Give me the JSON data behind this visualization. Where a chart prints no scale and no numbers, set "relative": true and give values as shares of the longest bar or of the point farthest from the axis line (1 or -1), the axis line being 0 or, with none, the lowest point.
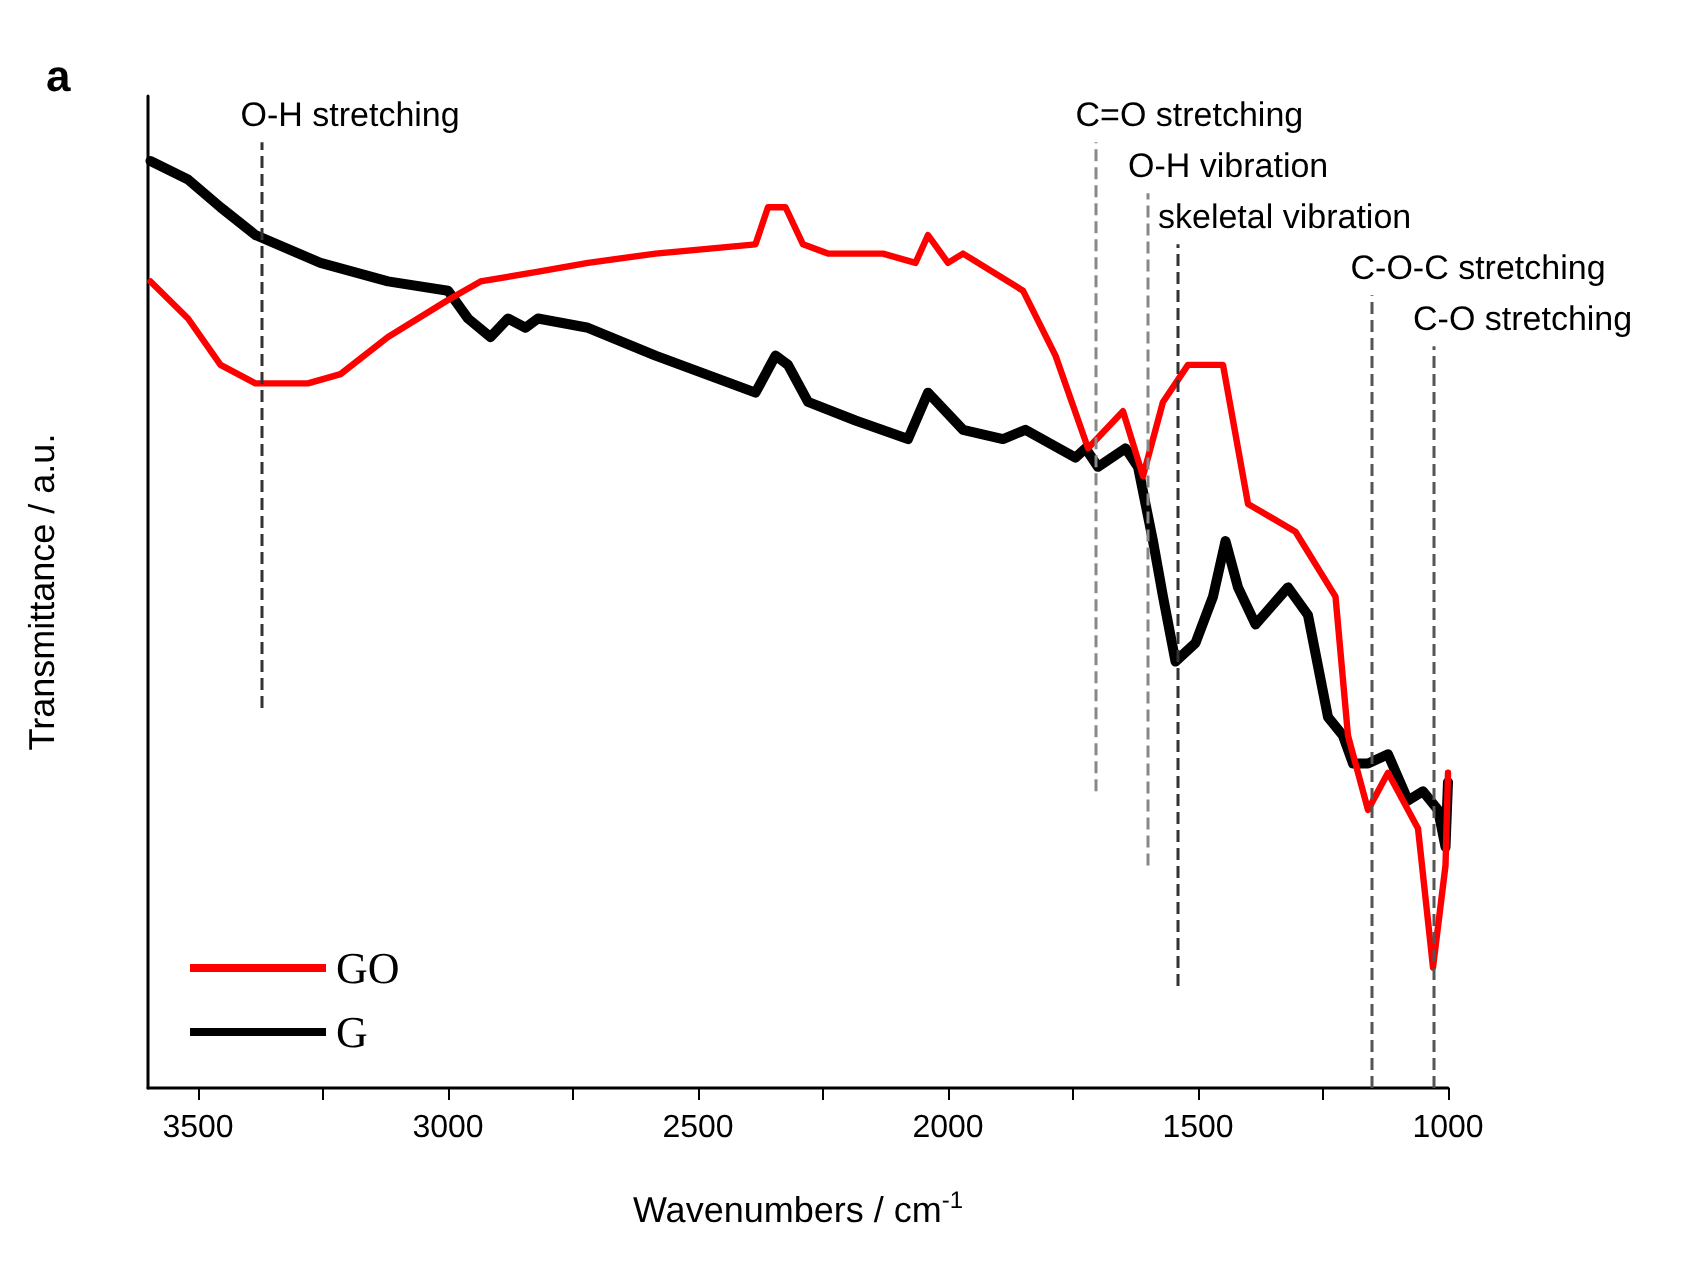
{
  "chart_data": {
    "type": "line",
    "title": "a",
    "xlabel": "Wavenumbers / cm$^{-1}$",
    "ylabel": "Transmittance / a.u.",
    "relative": true,
    "xlim": [
      3600,
      1000
    ],
    "xticks": [
      3500,
      {
        "value": 3250,
        "label": null
      },
      3000,
      {
        "value": 2750,
        "label": null
      },
      2500,
      {
        "value": 2250,
        "label": null
      },
      2000,
      {
        "value": 1750,
        "label": null
      },
      1500,
      {
        "value": 1250,
        "label": null
      },
      1000
    ],
    "grid": false,
    "legend": "bottom left",
    "marker": "none",
    "line_style": "solid",
    "series": [
      {
        "name": "GO",
        "color": "#ff0000",
        "x": [
          3595,
          3520,
          3455,
          3385,
          3280,
          3215,
          3120,
          3000,
          2935,
          2825,
          2720,
          2585,
          2385,
          2360,
          2325,
          2290,
          2240,
          2130,
          2065,
          2040,
          2000,
          1970,
          1850,
          1785,
          1720,
          1650,
          1610,
          1570,
          1520,
          1450,
          1400,
          1305,
          1225,
          1200,
          1160,
          1120,
          1060,
          1030,
          1005,
          1000
        ],
        "values": [
          0.87,
          0.83,
          0.78,
          0.76,
          0.76,
          0.77,
          0.81,
          0.85,
          0.87,
          0.88,
          0.89,
          0.9,
          0.91,
          0.95,
          0.95,
          0.91,
          0.9,
          0.9,
          0.89,
          0.92,
          0.89,
          0.9,
          0.86,
          0.79,
          0.69,
          0.73,
          0.66,
          0.74,
          0.78,
          0.78,
          0.63,
          0.6,
          0.53,
          0.38,
          0.3,
          0.34,
          0.28,
          0.13,
          0.24,
          0.34
        ]
      },
      {
        "name": "G",
        "color": "#000000",
        "x": [
          3595,
          3520,
          3455,
          3385,
          3255,
          3120,
          3000,
          2960,
          2915,
          2880,
          2845,
          2820,
          2720,
          2585,
          2385,
          2345,
          2320,
          2280,
          2185,
          2080,
          2040,
          1970,
          1890,
          1845,
          1745,
          1725,
          1700,
          1645,
          1620,
          1590,
          1570,
          1545,
          1505,
          1470,
          1445,
          1420,
          1385,
          1320,
          1280,
          1240,
          1210,
          1190,
          1160,
          1120,
          1080,
          1050,
          1020,
          1005,
          1000
        ],
        "values": [
          1.0,
          0.98,
          0.95,
          0.92,
          0.89,
          0.87,
          0.86,
          0.83,
          0.81,
          0.83,
          0.82,
          0.83,
          0.82,
          0.79,
          0.75,
          0.79,
          0.78,
          0.74,
          0.72,
          0.7,
          0.75,
          0.71,
          0.7,
          0.71,
          0.68,
          0.69,
          0.67,
          0.69,
          0.67,
          0.59,
          0.53,
          0.46,
          0.48,
          0.53,
          0.59,
          0.54,
          0.5,
          0.54,
          0.51,
          0.4,
          0.38,
          0.35,
          0.35,
          0.36,
          0.31,
          0.32,
          0.3,
          0.26,
          0.33
        ]
      }
    ],
    "ref_lines": [
      {
        "axis": "x",
        "value": 3375,
        "label": "O-H stretching",
        "line_style": "dashed",
        "color": "#333333"
      },
      {
        "axis": "x",
        "value": 1705,
        "label": "C=O stretching",
        "line_style": "dashed",
        "color": "#888888"
      },
      {
        "axis": "x",
        "value": 1600,
        "label": "O-H vibration",
        "line_style": "dashed",
        "color": "#888888"
      },
      {
        "axis": "x",
        "value": 1540,
        "label": "skeletal vibration",
        "line_style": "dashed",
        "color": "#333333"
      },
      {
        "axis": "x",
        "value": 1155,
        "label": "C-O-C stretching",
        "line_style": "dashed",
        "color": "#555555"
      },
      {
        "axis": "x",
        "value": 1030,
        "label": "C-O stretching",
        "line_style": "dashed",
        "color": "#555555"
      }
    ]
  }
}
